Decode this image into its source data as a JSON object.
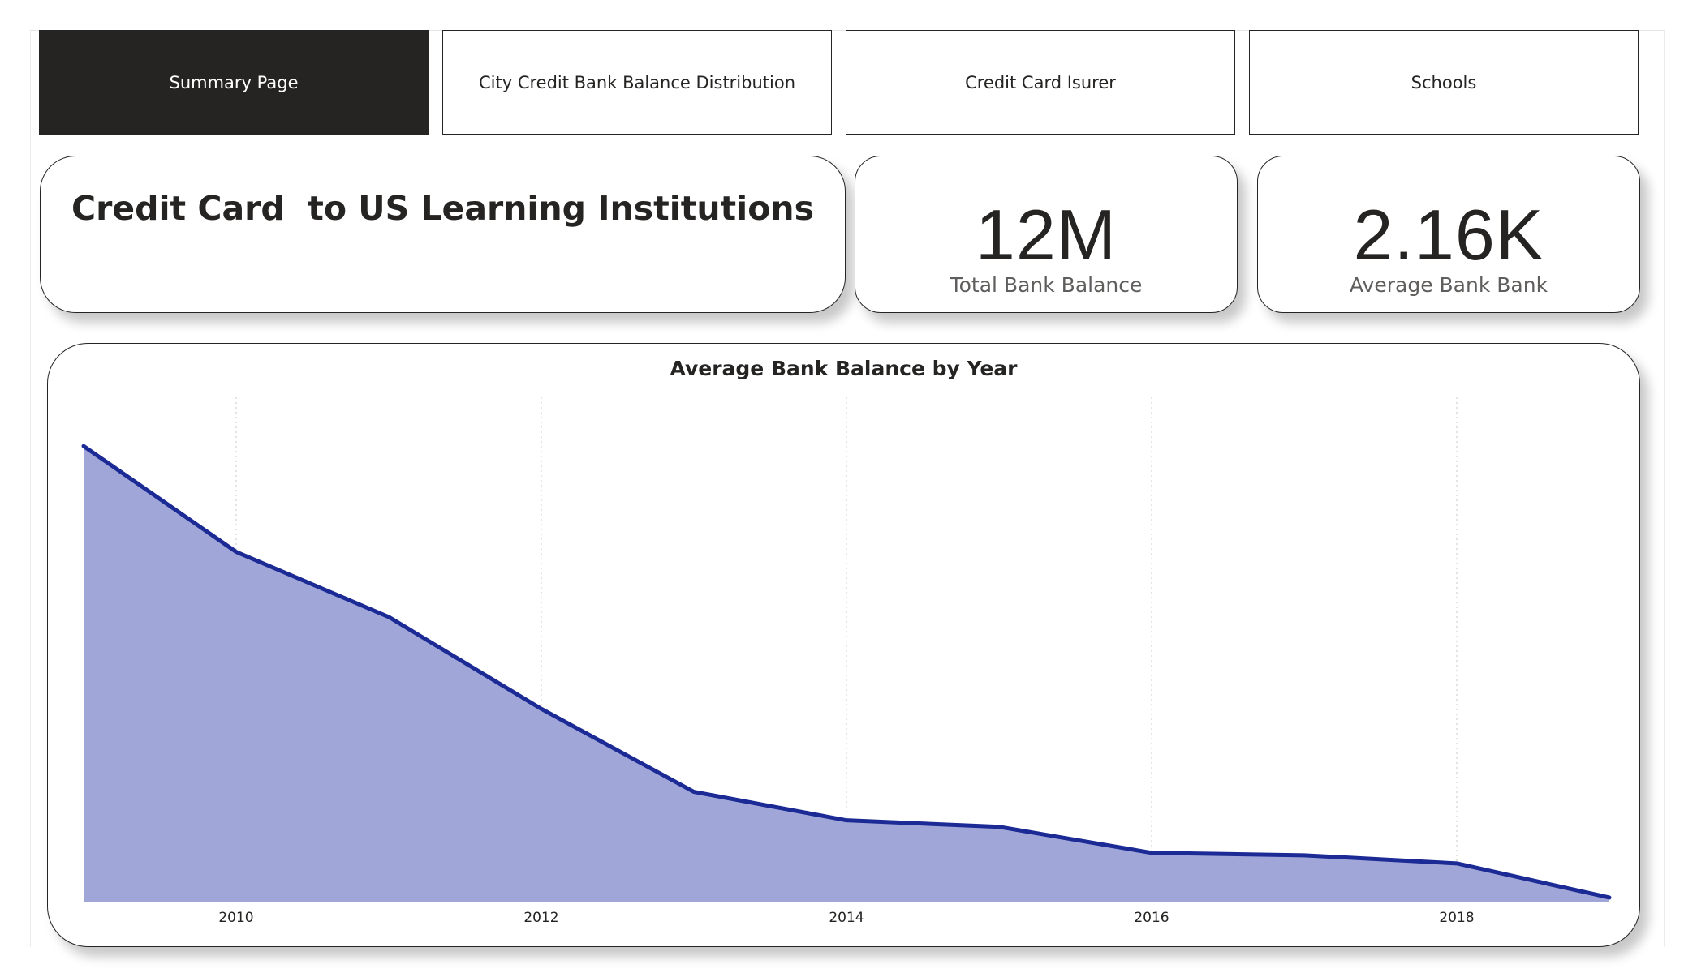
{
  "nav": {
    "buttons": [
      {
        "label": "Summary Page",
        "active": true
      },
      {
        "label": "City Credit Bank Balance Distribution",
        "active": false
      },
      {
        "label": "Credit Card Isurer",
        "active": false
      },
      {
        "label": "Schools",
        "active": false
      }
    ]
  },
  "title_card": {
    "text": "Credit Card  to US Learning Institutions"
  },
  "kpis": {
    "total": {
      "value": "12M",
      "label": "Total Bank Balance"
    },
    "average": {
      "value": "2.16K",
      "label": "Average Bank Bank"
    }
  },
  "colors": {
    "line": "#1b2a94",
    "area": "#a0a7d8",
    "nav_active": "#252423",
    "gridline": "#c8c8c8"
  },
  "chart_data": {
    "type": "area",
    "title": "Average Bank Balance by Year",
    "xlabel": "",
    "ylabel": "",
    "x": [
      2009,
      2010,
      2011,
      2012,
      2013,
      2014,
      2015,
      2016,
      2017,
      2018,
      2019
    ],
    "series": [
      {
        "values": [
          2600,
          2470,
          2390,
          2277,
          2175,
          2140,
          2132,
          2100,
          2097,
          2087,
          2045
        ]
      }
    ],
    "xticks": [
      "2010",
      "2012",
      "2014",
      "2016",
      "2018"
    ],
    "ylim": [
      2040,
      2660
    ],
    "grid": "vertical dotted",
    "legend": "none"
  }
}
